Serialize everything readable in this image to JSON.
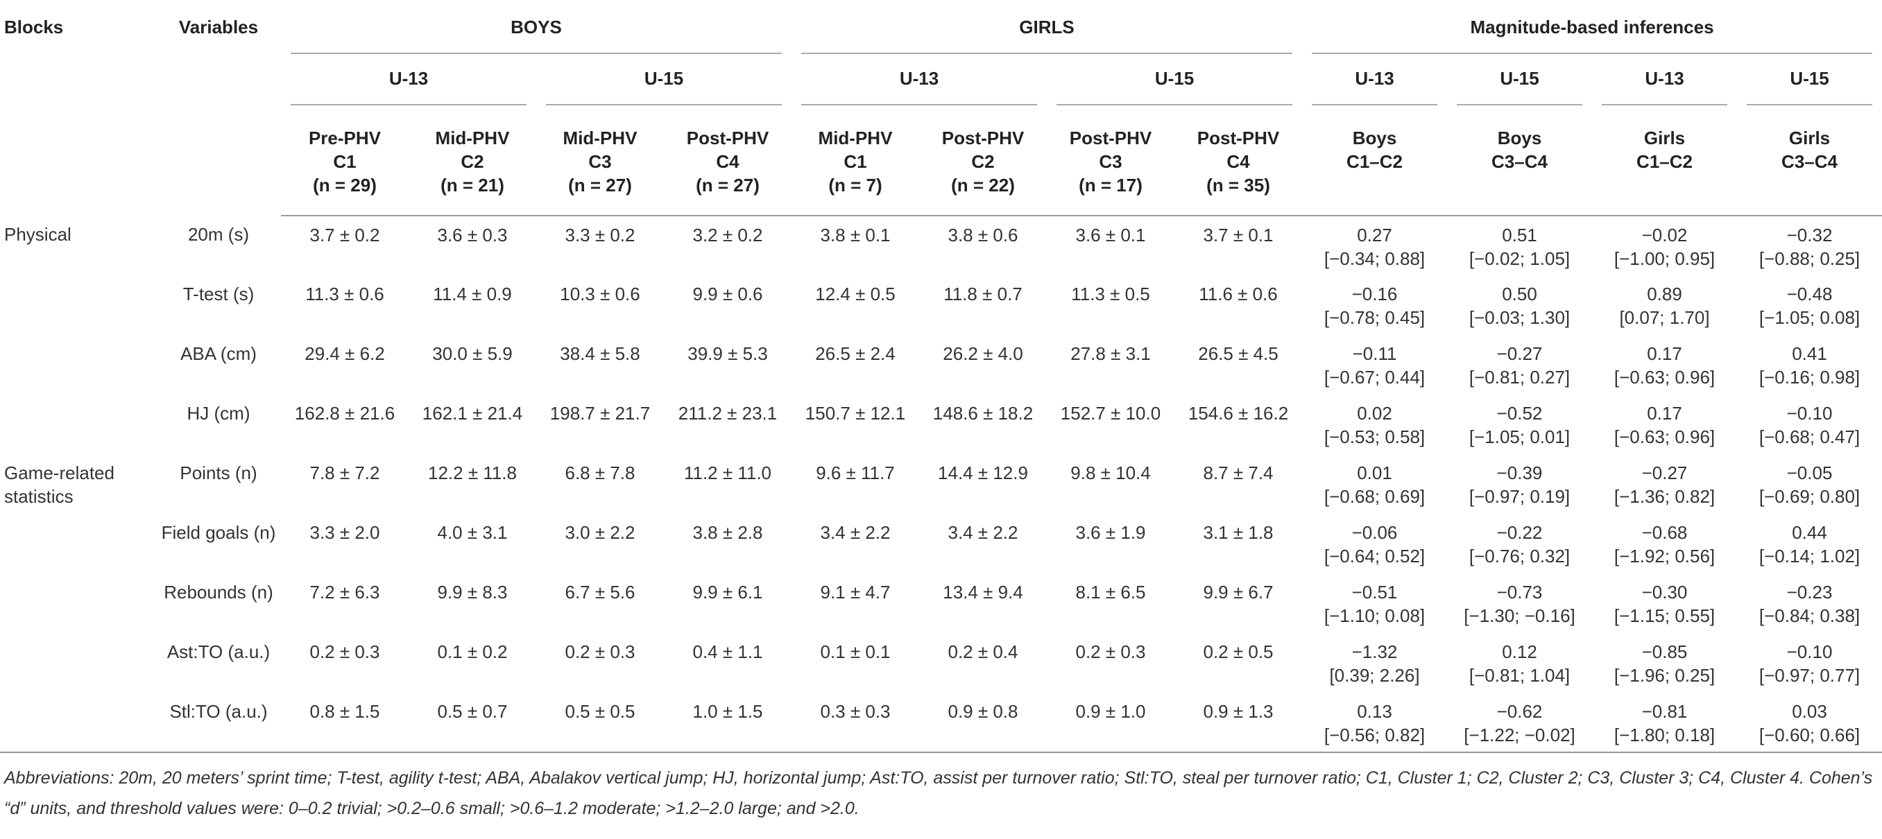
{
  "header": {
    "blocks": "Blocks",
    "variables": "Variables",
    "groups": [
      {
        "name": "BOYS",
        "subgroups": [
          {
            "name": "U-13",
            "columns": [
              {
                "lines": [
                  "Pre-PHV",
                  "C1"
                ],
                "n": "(n = 29)"
              },
              {
                "lines": [
                  "Mid-PHV",
                  "C2"
                ],
                "n": "(n = 21)"
              }
            ]
          },
          {
            "name": "U-15",
            "columns": [
              {
                "lines": [
                  "Mid-PHV",
                  "C3"
                ],
                "n": "(n = 27)"
              },
              {
                "lines": [
                  "Post-PHV",
                  "C4"
                ],
                "n": "(n = 27)"
              }
            ]
          }
        ]
      },
      {
        "name": "GIRLS",
        "subgroups": [
          {
            "name": "U-13",
            "columns": [
              {
                "lines": [
                  "Mid-PHV",
                  "C1"
                ],
                "n": "(n = 7)"
              },
              {
                "lines": [
                  "Post-PHV",
                  "C2"
                ],
                "n": "(n = 22)"
              }
            ]
          },
          {
            "name": "U-15",
            "columns": [
              {
                "lines": [
                  "Post-PHV",
                  "C3"
                ],
                "n": "(n = 17)"
              },
              {
                "lines": [
                  "Post-PHV",
                  "C4"
                ],
                "n": "(n = 35)"
              }
            ]
          }
        ]
      },
      {
        "name": "Magnitude-based inferences",
        "subgroups": [
          {
            "name": "U-13",
            "columns": [
              {
                "lines": [
                  "Boys",
                  "C1–C2"
                ]
              }
            ]
          },
          {
            "name": "U-15",
            "columns": [
              {
                "lines": [
                  "Boys",
                  "C3–C4"
                ]
              }
            ]
          },
          {
            "name": "U-13",
            "columns": [
              {
                "lines": [
                  "Girls",
                  "C1–C2"
                ]
              }
            ]
          },
          {
            "name": "U-15",
            "columns": [
              {
                "lines": [
                  "Girls",
                  "C3–C4"
                ]
              }
            ]
          }
        ]
      }
    ]
  },
  "blocks": [
    {
      "name": "Physical",
      "rows": [
        {
          "variable": "20m (s)",
          "values": [
            "3.7 ± 0.2",
            "3.6 ± 0.3",
            "3.3 ± 0.2",
            "3.2 ± 0.2",
            "3.8 ± 0.1",
            "3.8 ± 0.6",
            "3.6 ± 0.1",
            "3.7 ± 0.1"
          ],
          "inferences": [
            [
              "0.27",
              "[−0.34; 0.88]"
            ],
            [
              "0.51",
              "[−0.02; 1.05]"
            ],
            [
              "−0.02",
              "[−1.00; 0.95]"
            ],
            [
              "−0.32",
              "[−0.88; 0.25]"
            ]
          ]
        },
        {
          "variable": "T-test (s)",
          "values": [
            "11.3 ± 0.6",
            "11.4 ± 0.9",
            "10.3 ± 0.6",
            "9.9 ± 0.6",
            "12.4 ± 0.5",
            "11.8 ± 0.7",
            "11.3 ± 0.5",
            "11.6 ± 0.6"
          ],
          "inferences": [
            [
              "−0.16",
              "[−0.78; 0.45]"
            ],
            [
              "0.50",
              "[−0.03; 1.30]"
            ],
            [
              "0.89",
              "[0.07; 1.70]"
            ],
            [
              "−0.48",
              "[−1.05; 0.08]"
            ]
          ]
        },
        {
          "variable": "ABA (cm)",
          "values": [
            "29.4 ± 6.2",
            "30.0 ± 5.9",
            "38.4 ± 5.8",
            "39.9 ± 5.3",
            "26.5 ± 2.4",
            "26.2 ± 4.0",
            "27.8 ± 3.1",
            "26.5 ± 4.5"
          ],
          "inferences": [
            [
              "−0.11",
              "[−0.67; 0.44]"
            ],
            [
              "−0.27",
              "[−0.81; 0.27]"
            ],
            [
              "0.17",
              "[−0.63; 0.96]"
            ],
            [
              "0.41",
              "[−0.16; 0.98]"
            ]
          ]
        },
        {
          "variable": "HJ (cm)",
          "values": [
            "162.8 ± 21.6",
            "162.1 ± 21.4",
            "198.7 ± 21.7",
            "211.2 ± 23.1",
            "150.7 ± 12.1",
            "148.6 ± 18.2",
            "152.7 ± 10.0",
            "154.6 ± 16.2"
          ],
          "inferences": [
            [
              "0.02",
              "[−0.53; 0.58]"
            ],
            [
              "−0.52",
              "[−1.05; 0.01]"
            ],
            [
              "0.17",
              "[−0.63; 0.96]"
            ],
            [
              "−0.10",
              "[−0.68; 0.47]"
            ]
          ]
        }
      ]
    },
    {
      "name": "Game-related statistics",
      "rows": [
        {
          "variable": "Points (n)",
          "values": [
            "7.8 ± 7.2",
            "12.2 ± 11.8",
            "6.8 ± 7.8",
            "11.2 ± 11.0",
            "9.6 ± 11.7",
            "14.4 ± 12.9",
            "9.8 ± 10.4",
            "8.7 ± 7.4"
          ],
          "inferences": [
            [
              "0.01",
              "[−0.68; 0.69]"
            ],
            [
              "−0.39",
              "[−0.97; 0.19]"
            ],
            [
              "−0.27",
              "[−1.36; 0.82]"
            ],
            [
              "−0.05",
              "[−0.69; 0.80]"
            ]
          ]
        },
        {
          "variable": "Field goals (n)",
          "values": [
            "3.3 ± 2.0",
            "4.0 ± 3.1",
            "3.0 ± 2.2",
            "3.8 ± 2.8",
            "3.4 ± 2.2",
            "3.4 ± 2.2",
            "3.6 ± 1.9",
            "3.1 ± 1.8"
          ],
          "inferences": [
            [
              "−0.06",
              "[−0.64; 0.52]"
            ],
            [
              "−0.22",
              "[−0.76; 0.32]"
            ],
            [
              "−0.68",
              "[−1.92; 0.56]"
            ],
            [
              "0.44",
              "[−0.14; 1.02]"
            ]
          ]
        },
        {
          "variable": "Rebounds (n)",
          "values": [
            "7.2 ± 6.3",
            "9.9 ± 8.3",
            "6.7 ± 5.6",
            "9.9 ± 6.1",
            "9.1 ± 4.7",
            "13.4 ± 9.4",
            "8.1 ± 6.5",
            "9.9 ± 6.7"
          ],
          "inferences": [
            [
              "−0.51",
              "[−1.10; 0.08]"
            ],
            [
              "−0.73",
              "[−1.30; −0.16]"
            ],
            [
              "−0.30",
              "[−1.15; 0.55]"
            ],
            [
              "−0.23",
              "[−0.84; 0.38]"
            ]
          ]
        },
        {
          "variable": "Ast:TO (a.u.)",
          "values": [
            "0.2 ± 0.3",
            "0.1 ± 0.2",
            "0.2 ± 0.3",
            "0.4 ± 1.1",
            "0.1 ± 0.1",
            "0.2 ± 0.4",
            "0.2 ± 0.3",
            "0.2 ± 0.5"
          ],
          "inferences": [
            [
              "−1.32",
              "[0.39; 2.26]"
            ],
            [
              "0.12",
              "[−0.81; 1.04]"
            ],
            [
              "−0.85",
              "[−1.96; 0.25]"
            ],
            [
              "−0.10",
              "[−0.97; 0.77]"
            ]
          ]
        },
        {
          "variable": "Stl:TO (a.u.)",
          "values": [
            "0.8 ± 1.5",
            "0.5 ± 0.7",
            "0.5 ± 0.5",
            "1.0 ± 1.5",
            "0.3 ± 0.3",
            "0.9 ± 0.8",
            "0.9 ± 1.0",
            "0.9 ± 1.3"
          ],
          "inferences": [
            [
              "0.13",
              "[−0.56; 0.82]"
            ],
            [
              "−0.62",
              "[−1.22; −0.02]"
            ],
            [
              "−0.81",
              "[−1.80; 0.18]"
            ],
            [
              "0.03",
              "[−0.60; 0.66]"
            ]
          ]
        }
      ]
    }
  ],
  "note": "Abbreviations: 20m, 20 meters’ sprint time; T-test, agility t-test; ABA, Abalakov vertical jump; HJ, horizontal jump; Ast:TO, assist per turnover ratio; Stl:TO, steal per turnover ratio; C1, Cluster 1; C2, Cluster 2; C3, Cluster 3; C4, Cluster 4. Cohen’s “d” units, and threshold values were: 0–0.2 trivial; >0.2–0.6 small; >0.6–1.2 moderate; >1.2–2.0 large; and >2.0."
}
